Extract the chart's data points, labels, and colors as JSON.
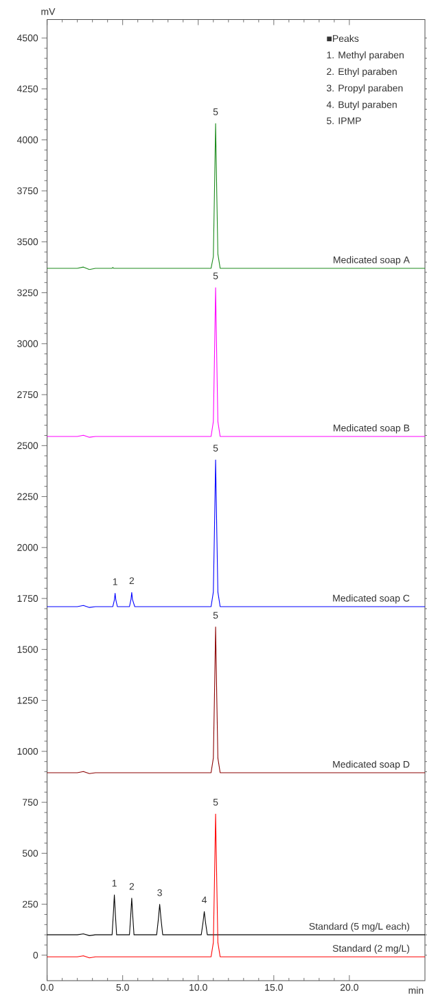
{
  "chart_data": {
    "type": "line",
    "xlabel": "min",
    "ylabel": "mV",
    "xlim": [
      0,
      25
    ],
    "ylim": [
      -125,
      4590
    ],
    "xticks": [
      {
        "value": 0,
        "label": "0.0"
      },
      {
        "value": 5,
        "label": "5.0"
      },
      {
        "value": 10,
        "label": "10.0"
      },
      {
        "value": 15,
        "label": "15.0"
      },
      {
        "value": 20,
        "label": "20.0"
      }
    ],
    "yticks": [
      0,
      250,
      500,
      750,
      1000,
      1250,
      1500,
      1750,
      2000,
      2250,
      2500,
      2750,
      3000,
      3250,
      3500,
      3750,
      4000,
      4250,
      4500
    ],
    "series": [
      {
        "name": "Medicated soap A",
        "color": "#1a8a1a",
        "x": [
          0,
          2.0,
          2.4,
          2.8,
          3.2,
          4.3,
          4.35,
          4.4,
          10.85,
          11.0,
          11.07,
          11.15,
          11.23,
          11.3,
          11.45,
          25
        ],
        "values": [
          3370,
          3370,
          3376,
          3364,
          3370,
          3370,
          3374,
          3370,
          3370,
          3427,
          3725,
          4080,
          3725,
          3440,
          3370,
          3370
        ]
      },
      {
        "name": "Medicated soap B",
        "color": "#ff00ff",
        "x": [
          0,
          2.0,
          2.4,
          2.8,
          3.2,
          10.85,
          11.0,
          11.07,
          11.15,
          11.23,
          11.3,
          11.45,
          25
        ],
        "values": [
          2545,
          2545,
          2551,
          2541,
          2545,
          2545,
          2618,
          2910,
          3275,
          2910,
          2618,
          2545,
          2545
        ]
      },
      {
        "name": "Medicated soap C",
        "color": "#0000ff",
        "x": [
          0,
          2.0,
          2.4,
          2.8,
          3.2,
          4.35,
          4.45,
          4.5,
          4.55,
          4.65,
          5.45,
          5.55,
          5.6,
          5.65,
          5.8,
          10.85,
          11.0,
          11.07,
          11.15,
          11.23,
          11.3,
          11.45,
          25
        ],
        "values": [
          1710,
          1710,
          1716,
          1706,
          1710,
          1710,
          1742,
          1775,
          1742,
          1710,
          1710,
          1745,
          1780,
          1745,
          1710,
          1710,
          1782,
          2070,
          2430,
          2070,
          1782,
          1710,
          1710
        ]
      },
      {
        "name": "Medicated soap D",
        "color": "#8b0000",
        "x": [
          0,
          2.0,
          2.4,
          2.8,
          3.2,
          10.85,
          11.0,
          11.07,
          11.15,
          11.23,
          11.3,
          11.45,
          25
        ],
        "values": [
          895,
          895,
          901,
          891,
          895,
          895,
          967,
          1252,
          1610,
          1252,
          967,
          895,
          895
        ]
      },
      {
        "name": "Standard (5 mg/L each)",
        "color": "#000000",
        "x": [
          0,
          2.0,
          2.4,
          2.8,
          3.2,
          4.3,
          4.38,
          4.45,
          4.52,
          4.6,
          5.45,
          5.53,
          5.6,
          5.67,
          5.75,
          7.25,
          7.36,
          7.45,
          7.54,
          7.65,
          10.2,
          10.31,
          10.4,
          10.49,
          10.6,
          25
        ],
        "values": [
          100,
          100,
          105,
          96,
          100,
          100,
          198,
          296,
          198,
          100,
          100,
          190,
          280,
          190,
          100,
          100,
          175,
          249,
          175,
          100,
          100,
          157,
          214,
          157,
          100,
          100
        ]
      },
      {
        "name": "Standard (2 mg/L)",
        "color": "#ff0000",
        "x": [
          0,
          2.0,
          2.4,
          2.8,
          3.2,
          10.85,
          11.0,
          11.07,
          11.15,
          11.23,
          11.3,
          11.45,
          25
        ],
        "values": [
          -8,
          -8,
          -3,
          -13,
          -8,
          -8,
          62,
          343,
          693,
          343,
          62,
          -8,
          -8
        ]
      }
    ],
    "annotations": [
      "■Peaks",
      "1. Methyl paraben",
      "2. Ethyl paraben",
      "3. Propyl paraben",
      "4. Butyl paraben",
      "5. IPMP",
      {
        "text": "5",
        "x": 11.15,
        "y": 4080
      },
      {
        "text": "5",
        "x": 11.15,
        "y": 3275
      },
      {
        "text": "1",
        "x": 4.5,
        "y": 1775
      },
      {
        "text": "2",
        "x": 5.6,
        "y": 1780
      },
      {
        "text": "5",
        "x": 11.15,
        "y": 2430
      },
      {
        "text": "5",
        "x": 11.15,
        "y": 1610
      },
      {
        "text": "1",
        "x": 4.45,
        "y": 296
      },
      {
        "text": "2",
        "x": 5.6,
        "y": 280
      },
      {
        "text": "3",
        "x": 7.45,
        "y": 249
      },
      {
        "text": "4",
        "x": 10.4,
        "y": 214
      },
      {
        "text": "5",
        "x": 11.15,
        "y": 693
      }
    ]
  }
}
